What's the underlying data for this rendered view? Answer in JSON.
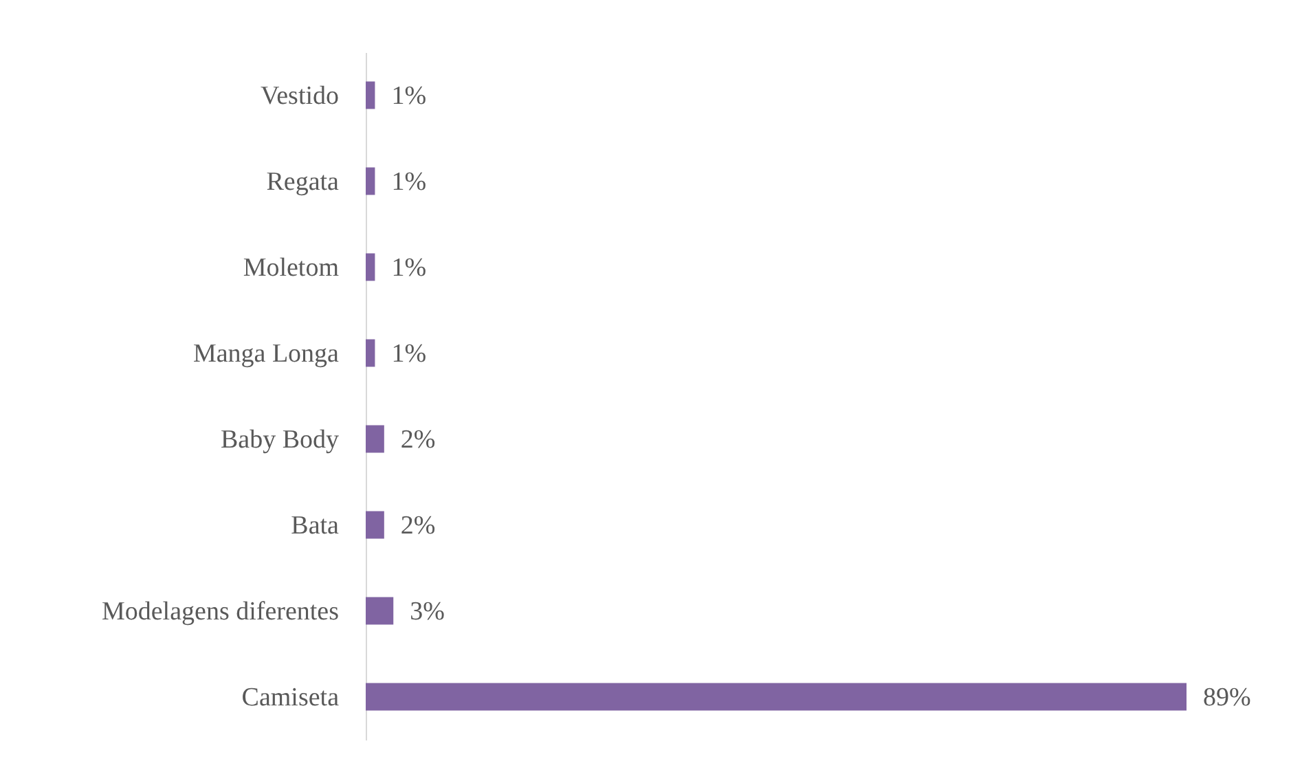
{
  "chart_data": {
    "type": "bar",
    "orientation": "horizontal",
    "categories": [
      "Vestido",
      "Regata",
      "Moletom",
      "Manga Longa",
      "Baby Body",
      "Bata",
      "Modelagens diferentes",
      "Camiseta"
    ],
    "values": [
      1,
      1,
      1,
      1,
      2,
      2,
      3,
      89
    ],
    "value_labels": [
      "1%",
      "1%",
      "1%",
      "1%",
      "2%",
      "2%",
      "3%",
      "89%"
    ],
    "color": "#8064a2"
  }
}
